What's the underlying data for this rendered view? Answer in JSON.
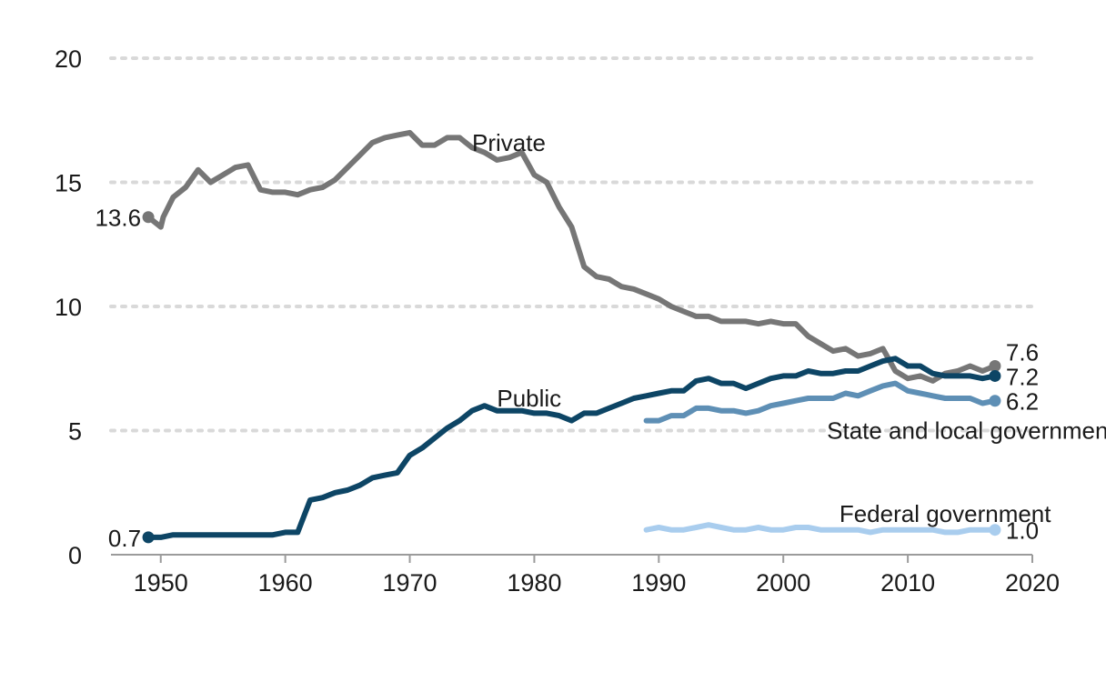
{
  "chart_data": {
    "type": "line",
    "title": "",
    "xlabel": "",
    "ylabel": "",
    "xlim": [
      1946,
      2020
    ],
    "ylim": [
      0,
      20
    ],
    "x_ticks": [
      1950,
      1960,
      1970,
      1980,
      1990,
      2000,
      2010,
      2020
    ],
    "y_ticks": [
      0,
      5,
      10,
      15,
      20
    ],
    "grid": "horizontal dotted",
    "legend": "none (direct labels)",
    "series": [
      {
        "name": "Private",
        "color": "#767676",
        "label_year": 1975,
        "label_value": 16.6,
        "start_label": "13.6",
        "end_label": "7.6",
        "points": [
          [
            1949,
            13.6
          ],
          [
            1950,
            13.2
          ],
          [
            1950.2,
            13.6
          ],
          [
            1951,
            14.4
          ],
          [
            1952,
            14.8
          ],
          [
            1953,
            15.5
          ],
          [
            1954,
            15.0
          ],
          [
            1955,
            15.3
          ],
          [
            1956,
            15.6
          ],
          [
            1957,
            15.7
          ],
          [
            1958,
            14.7
          ],
          [
            1959,
            14.6
          ],
          [
            1960,
            14.6
          ],
          [
            1961,
            14.5
          ],
          [
            1962,
            14.7
          ],
          [
            1963,
            14.8
          ],
          [
            1964,
            15.1
          ],
          [
            1965,
            15.6
          ],
          [
            1966,
            16.1
          ],
          [
            1967,
            16.6
          ],
          [
            1968,
            16.8
          ],
          [
            1969,
            16.9
          ],
          [
            1970,
            17.0
          ],
          [
            1971,
            16.5
          ],
          [
            1972,
            16.5
          ],
          [
            1973,
            16.8
          ],
          [
            1974,
            16.8
          ],
          [
            1975,
            16.4
          ],
          [
            1976,
            16.2
          ],
          [
            1977,
            15.9
          ],
          [
            1978,
            16.0
          ],
          [
            1979,
            16.2
          ],
          [
            1980,
            15.3
          ],
          [
            1981,
            15.0
          ],
          [
            1982,
            14.0
          ],
          [
            1983,
            13.2
          ],
          [
            1984,
            11.6
          ],
          [
            1985,
            11.2
          ],
          [
            1986,
            11.1
          ],
          [
            1987,
            10.8
          ],
          [
            1988,
            10.7
          ],
          [
            1989,
            10.5
          ],
          [
            1990,
            10.3
          ],
          [
            1991,
            10.0
          ],
          [
            1992,
            9.8
          ],
          [
            1993,
            9.6
          ],
          [
            1994,
            9.6
          ],
          [
            1995,
            9.4
          ],
          [
            1996,
            9.4
          ],
          [
            1997,
            9.4
          ],
          [
            1998,
            9.3
          ],
          [
            1999,
            9.4
          ],
          [
            2000,
            9.3
          ],
          [
            2001,
            9.3
          ],
          [
            2002,
            8.8
          ],
          [
            2003,
            8.5
          ],
          [
            2004,
            8.2
          ],
          [
            2005,
            8.3
          ],
          [
            2006,
            8.0
          ],
          [
            2007,
            8.1
          ],
          [
            2008,
            8.3
          ],
          [
            2009,
            7.4
          ],
          [
            2010,
            7.1
          ],
          [
            2011,
            7.2
          ],
          [
            2012,
            7.0
          ],
          [
            2013,
            7.3
          ],
          [
            2014,
            7.4
          ],
          [
            2015,
            7.6
          ],
          [
            2016,
            7.4
          ],
          [
            2017,
            7.6
          ]
        ]
      },
      {
        "name": "Public",
        "color": "#0d4565",
        "label_year": 1977,
        "label_value": 6.3,
        "start_label": "0.7",
        "end_label": "7.2",
        "points": [
          [
            1949,
            0.7
          ],
          [
            1950,
            0.7
          ],
          [
            1951,
            0.8
          ],
          [
            1952,
            0.8
          ],
          [
            1953,
            0.8
          ],
          [
            1954,
            0.8
          ],
          [
            1955,
            0.8
          ],
          [
            1956,
            0.8
          ],
          [
            1957,
            0.8
          ],
          [
            1958,
            0.8
          ],
          [
            1959,
            0.8
          ],
          [
            1960,
            0.9
          ],
          [
            1961,
            0.9
          ],
          [
            1962,
            2.2
          ],
          [
            1963,
            2.3
          ],
          [
            1964,
            2.5
          ],
          [
            1965,
            2.6
          ],
          [
            1966,
            2.8
          ],
          [
            1967,
            3.1
          ],
          [
            1968,
            3.2
          ],
          [
            1969,
            3.3
          ],
          [
            1970,
            4.0
          ],
          [
            1971,
            4.3
          ],
          [
            1972,
            4.7
          ],
          [
            1973,
            5.1
          ],
          [
            1974,
            5.4
          ],
          [
            1975,
            5.8
          ],
          [
            1976,
            6.0
          ],
          [
            1977,
            5.8
          ],
          [
            1978,
            5.8
          ],
          [
            1979,
            5.8
          ],
          [
            1980,
            5.7
          ],
          [
            1981,
            5.7
          ],
          [
            1982,
            5.6
          ],
          [
            1983,
            5.4
          ],
          [
            1984,
            5.7
          ],
          [
            1985,
            5.7
          ],
          [
            1986,
            5.9
          ],
          [
            1987,
            6.1
          ],
          [
            1988,
            6.3
          ],
          [
            1989,
            6.4
          ],
          [
            1990,
            6.5
          ],
          [
            1991,
            6.6
          ],
          [
            1992,
            6.6
          ],
          [
            1993,
            7.0
          ],
          [
            1994,
            7.1
          ],
          [
            1995,
            6.9
          ],
          [
            1996,
            6.9
          ],
          [
            1997,
            6.7
          ],
          [
            1998,
            6.9
          ],
          [
            1999,
            7.1
          ],
          [
            2000,
            7.2
          ],
          [
            2001,
            7.2
          ],
          [
            2002,
            7.4
          ],
          [
            2003,
            7.3
          ],
          [
            2004,
            7.3
          ],
          [
            2005,
            7.4
          ],
          [
            2006,
            7.4
          ],
          [
            2007,
            7.6
          ],
          [
            2008,
            7.8
          ],
          [
            2009,
            7.9
          ],
          [
            2010,
            7.6
          ],
          [
            2011,
            7.6
          ],
          [
            2012,
            7.3
          ],
          [
            2013,
            7.2
          ],
          [
            2014,
            7.2
          ],
          [
            2015,
            7.2
          ],
          [
            2016,
            7.1
          ],
          [
            2017,
            7.2
          ]
        ]
      },
      {
        "name": "State and local government",
        "color": "#5e8fb5",
        "label_year": 2003.5,
        "label_value": 5.0,
        "end_label": "6.2",
        "points": [
          [
            1989,
            5.4
          ],
          [
            1990,
            5.4
          ],
          [
            1991,
            5.6
          ],
          [
            1992,
            5.6
          ],
          [
            1993,
            5.9
          ],
          [
            1994,
            5.9
          ],
          [
            1995,
            5.8
          ],
          [
            1996,
            5.8
          ],
          [
            1997,
            5.7
          ],
          [
            1998,
            5.8
          ],
          [
            1999,
            6.0
          ],
          [
            2000,
            6.1
          ],
          [
            2001,
            6.2
          ],
          [
            2002,
            6.3
          ],
          [
            2003,
            6.3
          ],
          [
            2004,
            6.3
          ],
          [
            2005,
            6.5
          ],
          [
            2006,
            6.4
          ],
          [
            2007,
            6.6
          ],
          [
            2008,
            6.8
          ],
          [
            2009,
            6.9
          ],
          [
            2010,
            6.6
          ],
          [
            2011,
            6.5
          ],
          [
            2012,
            6.4
          ],
          [
            2013,
            6.3
          ],
          [
            2014,
            6.3
          ],
          [
            2015,
            6.3
          ],
          [
            2016,
            6.1
          ],
          [
            2017,
            6.2
          ]
        ]
      },
      {
        "name": "Federal government",
        "color": "#a9cdee",
        "label_year": 2004.5,
        "label_value": 1.65,
        "end_label": "1.0",
        "points": [
          [
            1989,
            1.0
          ],
          [
            1990,
            1.1
          ],
          [
            1991,
            1.0
          ],
          [
            1992,
            1.0
          ],
          [
            1993,
            1.1
          ],
          [
            1994,
            1.2
          ],
          [
            1995,
            1.1
          ],
          [
            1996,
            1.0
          ],
          [
            1997,
            1.0
          ],
          [
            1998,
            1.1
          ],
          [
            1999,
            1.0
          ],
          [
            2000,
            1.0
          ],
          [
            2001,
            1.1
          ],
          [
            2002,
            1.1
          ],
          [
            2003,
            1.0
          ],
          [
            2004,
            1.0
          ],
          [
            2005,
            1.0
          ],
          [
            2006,
            1.0
          ],
          [
            2007,
            0.9
          ],
          [
            2008,
            1.0
          ],
          [
            2009,
            1.0
          ],
          [
            2010,
            1.0
          ],
          [
            2011,
            1.0
          ],
          [
            2012,
            1.0
          ],
          [
            2013,
            0.9
          ],
          [
            2014,
            0.9
          ],
          [
            2015,
            1.0
          ],
          [
            2016,
            1.0
          ],
          [
            2017,
            1.0
          ]
        ]
      }
    ]
  }
}
